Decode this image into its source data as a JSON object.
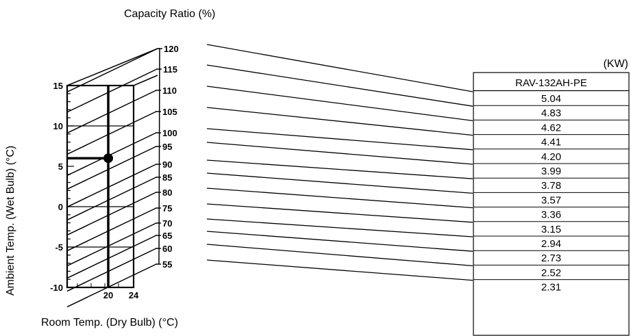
{
  "header": {
    "capacity_title": "Capacity Ratio (%)",
    "unit": "(KW)"
  },
  "axes": {
    "y_title": "Ambient Temp. (Wet Bulb) (°C)",
    "x_title": "Room Temp. (Dry Bulb) (°C)",
    "y_ticks": [
      "15",
      "10",
      "5",
      "0",
      "-5",
      "-10"
    ],
    "x_ticks": [
      "20",
      "24"
    ]
  },
  "capacity_ticks": [
    "120",
    "115",
    "110",
    "105",
    "100",
    "95",
    "90",
    "85",
    "80",
    "75",
    "70",
    "65",
    "60",
    "55"
  ],
  "operating_point": {
    "ambient_wet_bulb_c": 6,
    "room_dry_bulb_c": 20
  },
  "table": {
    "model": "RAV-132AH-PE",
    "values": [
      "5.04",
      "4.83",
      "4.62",
      "4.41",
      "4.20",
      "3.99",
      "3.78",
      "3.57",
      "3.36",
      "3.15",
      "2.94",
      "2.73",
      "2.52",
      "2.31"
    ]
  }
}
